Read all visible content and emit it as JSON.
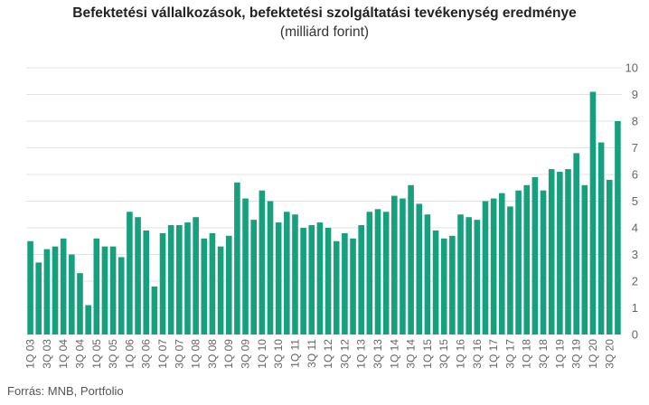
{
  "chart_data": {
    "type": "bar",
    "title": "Befektetési vállalkozások, befektetési szolgáltatási tevékenység eredménye",
    "subtitle": "(milliárd forint)",
    "source": "Forrás: MNB, Portfolio",
    "bar_color": "#17a07d",
    "grid": true,
    "ylim": [
      0,
      10
    ],
    "yticks": [
      "0",
      "1",
      "2",
      "3",
      "4",
      "5",
      "6",
      "7",
      "8",
      "9",
      "10"
    ],
    "categories": [
      "1Q 03",
      "2Q 03",
      "3Q 03",
      "4Q 03",
      "1Q 04",
      "2Q 04",
      "3Q 04",
      "4Q 04",
      "1Q 05",
      "2Q 05",
      "3Q 05",
      "4Q 05",
      "1Q 06",
      "2Q 06",
      "3Q 06",
      "4Q 06",
      "1Q 07",
      "2Q 07",
      "3Q 07",
      "4Q 07",
      "1Q 08",
      "2Q 08",
      "3Q 08",
      "4Q 08",
      "1Q 09",
      "2Q 09",
      "3Q 09",
      "4Q 09",
      "1Q 10",
      "2Q 10",
      "3Q 10",
      "4Q 10",
      "1Q 11",
      "2Q 11",
      "3Q 11",
      "4Q 11",
      "1Q 12",
      "2Q 12",
      "3Q 12",
      "4Q 12",
      "1Q 13",
      "2Q 13",
      "3Q 13",
      "4Q 13",
      "1Q 14",
      "2Q 14",
      "3Q 14",
      "4Q 14",
      "1Q 15",
      "2Q 15",
      "3Q 15",
      "4Q 15",
      "1Q 16",
      "2Q 16",
      "3Q 16",
      "4Q 16",
      "1Q 17",
      "2Q 17",
      "3Q 17",
      "4Q 17",
      "1Q 18",
      "2Q 18",
      "3Q 18",
      "4Q 18",
      "1Q 19",
      "2Q 19",
      "3Q 19",
      "4Q 19",
      "1Q 20",
      "2Q 20",
      "3Q 20",
      "4Q 20"
    ],
    "visible_xticks": [
      "1Q 03",
      "3Q 03",
      "1Q 04",
      "3Q 04",
      "1Q 05",
      "3Q 05",
      "1Q 06",
      "3Q 06",
      "1Q 07",
      "3Q 07",
      "1Q 08",
      "3Q 08",
      "1Q 09",
      "3Q 09",
      "1Q 10",
      "3Q 10",
      "1Q 11",
      "3Q 11",
      "1Q 12",
      "3Q 12",
      "1Q 13",
      "3Q 13",
      "1Q 14",
      "3Q 14",
      "1Q 15",
      "3Q 15",
      "1Q 16",
      "3Q 16",
      "1Q 17",
      "3Q 17",
      "1Q 18",
      "3Q 18",
      "1Q 19",
      "3Q 19",
      "1Q 20",
      "3Q 20"
    ],
    "values": [
      3.5,
      2.7,
      3.2,
      3.3,
      3.6,
      3.0,
      2.3,
      1.1,
      3.6,
      3.3,
      3.3,
      2.9,
      4.6,
      4.4,
      3.9,
      1.8,
      3.8,
      4.1,
      4.1,
      4.2,
      4.4,
      3.6,
      3.8,
      3.3,
      3.7,
      5.7,
      5.1,
      4.3,
      5.4,
      5.0,
      4.2,
      4.6,
      4.5,
      4.0,
      4.1,
      4.2,
      4.0,
      3.5,
      3.8,
      3.6,
      4.1,
      4.6,
      4.7,
      4.6,
      5.2,
      5.1,
      5.6,
      4.9,
      4.5,
      3.9,
      3.6,
      3.7,
      4.5,
      4.4,
      4.3,
      5.0,
      5.1,
      5.3,
      4.8,
      5.4,
      5.6,
      5.9,
      5.4,
      6.2,
      6.1,
      6.2,
      6.8,
      5.6,
      9.1,
      7.2,
      5.8,
      8.0
    ]
  }
}
